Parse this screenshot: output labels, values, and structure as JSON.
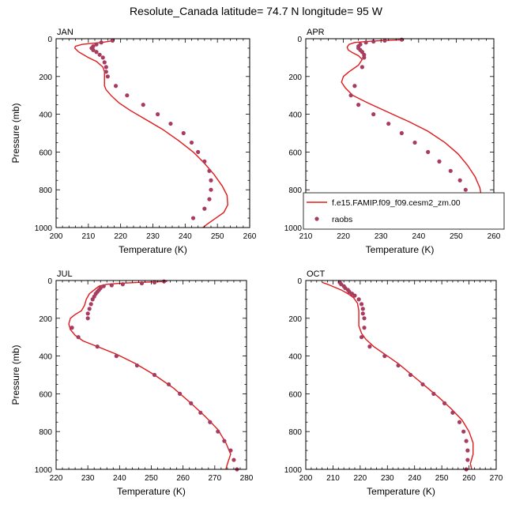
{
  "title": "Resolute_Canada  latitude= 74.7 N longitude= 95 W",
  "colors": {
    "model": "#e0191a",
    "obs": "#a83c60"
  },
  "legend": {
    "model_label": "f.e15.FAMIP.f09_f09.cesm2_zm.00",
    "obs_label": "raobs",
    "panel": "APR"
  },
  "chart_data": [
    {
      "type": "line",
      "panel": "JAN",
      "xlabel": "Temperature (K)",
      "ylabel": "Pressure (mb)",
      "xlim": [
        200,
        260
      ],
      "ylim": [
        1000,
        0
      ],
      "y_reversed": true,
      "xticks": [
        200,
        210,
        220,
        230,
        240,
        250,
        260
      ],
      "yticks": [
        0,
        200,
        400,
        600,
        800,
        1000
      ],
      "series": [
        {
          "name": "f.e15.FAMIP.f09_f09.cesm2_zm.00",
          "kind": "line",
          "x": [
            217.5,
            216,
            214,
            211,
            208,
            206,
            205.8,
            207,
            210,
            212.5,
            214.5,
            215,
            215,
            215,
            215.5,
            217,
            219.5,
            223,
            228,
            233,
            238,
            242.5,
            246,
            249,
            251.5,
            253,
            253.2,
            252,
            249.5,
            247,
            245.5
          ],
          "y": [
            10,
            15,
            20,
            25,
            30,
            40,
            50,
            70,
            100,
            120,
            150,
            175,
            200,
            250,
            270,
            300,
            340,
            380,
            430,
            480,
            540,
            600,
            660,
            720,
            780,
            830,
            880,
            920,
            950,
            980,
            1000
          ]
        },
        {
          "name": "raobs",
          "kind": "scatter",
          "x": [
            217.5,
            214,
            212.5,
            211.5,
            211,
            211.5,
            212.5,
            213.5,
            214.5,
            215,
            215.5,
            215.5,
            216,
            218.5,
            222,
            227,
            231.5,
            235.5,
            239.5,
            242,
            244,
            246,
            247.5,
            248,
            248,
            247.5,
            246,
            242.5
          ],
          "y": [
            10,
            20,
            30,
            40,
            50,
            60,
            70,
            85,
            100,
            125,
            150,
            175,
            200,
            250,
            300,
            350,
            400,
            450,
            500,
            550,
            600,
            650,
            700,
            750,
            800,
            850,
            900,
            950
          ]
        }
      ]
    },
    {
      "type": "line",
      "panel": "APR",
      "xlabel": "Temperature (K)",
      "ylabel": "",
      "xlim": [
        210,
        260
      ],
      "ylim": [
        1000,
        0
      ],
      "y_reversed": true,
      "xticks": [
        210,
        220,
        230,
        240,
        250,
        260
      ],
      "yticks": [
        0,
        200,
        400,
        600,
        800,
        1000
      ],
      "series": [
        {
          "name": "f.e15.FAMIP.f09_f09.cesm2_zm.00",
          "kind": "line",
          "x": [
            236,
            230,
            226,
            223,
            221.5,
            221,
            221.3,
            222.5,
            224,
            225,
            224,
            221.5,
            220,
            219.5,
            220.5,
            222.5,
            226.5,
            232,
            237.5,
            242.5,
            247,
            250.5,
            253,
            255,
            256.3,
            256.8,
            256.5,
            255.5,
            256
          ],
          "y": [
            5,
            10,
            15,
            20,
            30,
            45,
            60,
            75,
            90,
            110,
            140,
            175,
            200,
            230,
            260,
            300,
            340,
            390,
            440,
            490,
            550,
            610,
            670,
            730,
            790,
            850,
            900,
            960,
            1000
          ]
        },
        {
          "name": "raobs",
          "kind": "scatter",
          "x": [
            235.5,
            231,
            228,
            226,
            224.5,
            224,
            224,
            224.5,
            225,
            225.5,
            225.5,
            225,
            223,
            222,
            224,
            228,
            232,
            235.5,
            239,
            242.5,
            245.5,
            248.5,
            251,
            252.5,
            253.5,
            253.5,
            253,
            251
          ],
          "y": [
            5,
            10,
            15,
            20,
            30,
            40,
            50,
            60,
            70,
            85,
            100,
            150,
            250,
            300,
            350,
            400,
            450,
            500,
            550,
            600,
            650,
            700,
            750,
            800,
            850,
            900,
            950,
            1000
          ]
        }
      ]
    },
    {
      "type": "line",
      "panel": "JUL",
      "xlabel": "Temperature (K)",
      "ylabel": "Pressure (mb)",
      "xlim": [
        220,
        280
      ],
      "ylim": [
        1000,
        0
      ],
      "y_reversed": true,
      "xticks": [
        220,
        230,
        240,
        250,
        260,
        270,
        280
      ],
      "yticks": [
        0,
        200,
        400,
        600,
        800,
        1000
      ],
      "series": [
        {
          "name": "f.e15.FAMIP.f09_f09.cesm2_zm.00",
          "kind": "line",
          "x": [
            255,
            246,
            240,
            236,
            233.5,
            232,
            230.5,
            229.5,
            229,
            228,
            226,
            224.5,
            224,
            224.5,
            226,
            228.5,
            233,
            239,
            245,
            251,
            257,
            262.5,
            267,
            271,
            273.5,
            275,
            274,
            273.5
          ],
          "y": [
            5,
            10,
            15,
            20,
            30,
            50,
            70,
            100,
            130,
            160,
            180,
            200,
            230,
            260,
            290,
            320,
            350,
            390,
            440,
            500,
            570,
            650,
            720,
            790,
            860,
            920,
            970,
            1000
          ]
        },
        {
          "name": "raobs",
          "kind": "scatter",
          "x": [
            254,
            251,
            247,
            241,
            237.5,
            235,
            234,
            233.5,
            233,
            232.5,
            232,
            231.5,
            231,
            230.5,
            230,
            230,
            225,
            227,
            233,
            239,
            245.5,
            251,
            255.5,
            259,
            262.5,
            265.5,
            268.5,
            271,
            273,
            275,
            276,
            277
          ],
          "y": [
            5,
            10,
            15,
            20,
            25,
            30,
            40,
            50,
            60,
            70,
            85,
            100,
            125,
            150,
            175,
            200,
            250,
            300,
            350,
            400,
            450,
            500,
            550,
            600,
            650,
            700,
            750,
            800,
            850,
            900,
            950,
            1000
          ]
        }
      ]
    },
    {
      "type": "line",
      "panel": "OCT",
      "xlabel": "Temperature (K)",
      "ylabel": "",
      "xlim": [
        200,
        270
      ],
      "ylim": [
        1000,
        0
      ],
      "y_reversed": true,
      "xticks": [
        200,
        210,
        220,
        230,
        240,
        250,
        260,
        270
      ],
      "yticks": [
        0,
        200,
        400,
        600,
        800,
        1000
      ],
      "series": [
        {
          "name": "f.e15.FAMIP.f09_f09.cesm2_zm.00",
          "kind": "line",
          "x": [
            206,
            208,
            210.5,
            213,
            215.5,
            217.5,
            219,
            219.5,
            219.5,
            219.5,
            220.5,
            222,
            225,
            229,
            234,
            239,
            244,
            249,
            253.5,
            257.5,
            260,
            261.5,
            261.5,
            260.5,
            261
          ],
          "y": [
            10,
            20,
            35,
            50,
            70,
            90,
            120,
            160,
            200,
            240,
            280,
            310,
            350,
            390,
            440,
            500,
            560,
            620,
            680,
            740,
            800,
            860,
            920,
            970,
            1000
          ]
        },
        {
          "name": "raobs",
          "kind": "scatter",
          "x": [
            212.5,
            213,
            214,
            214.5,
            215.5,
            216,
            217,
            218,
            219.5,
            220.5,
            221,
            221,
            221.5,
            221.5,
            220.5,
            223.5,
            229,
            234,
            238.5,
            243,
            247,
            251,
            254,
            256.5,
            258,
            259,
            259.5,
            259.5,
            259
          ],
          "y": [
            10,
            20,
            30,
            40,
            50,
            60,
            70,
            80,
            100,
            125,
            150,
            175,
            200,
            250,
            300,
            350,
            400,
            450,
            500,
            550,
            600,
            650,
            700,
            750,
            800,
            850,
            900,
            950,
            1000
          ]
        }
      ]
    }
  ]
}
